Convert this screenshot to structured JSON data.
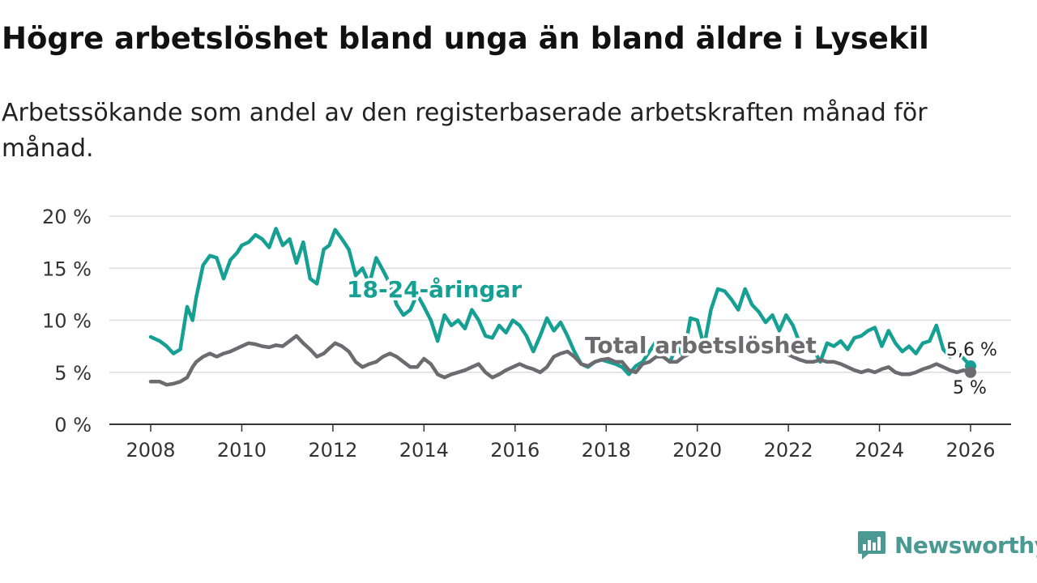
{
  "title": "Högre arbetslöshet bland unga än bland äldre i Lysekil",
  "subtitle": "Arbetssökande som andel av den registerbaserade arbetskraften månad för månad.",
  "brand": {
    "name": "Newsworthy"
  },
  "colors": {
    "youth": "#16a094",
    "total": "#6c6b70",
    "grid": "#dddddd",
    "axis": "#333333",
    "brand": "#4a9a93"
  },
  "chart_data": {
    "type": "line",
    "xlim": [
      2008,
      2026
    ],
    "ylim": [
      0,
      20
    ],
    "yticks": [
      0,
      5,
      10,
      15,
      20
    ],
    "ytick_labels": [
      "0 %",
      "5 %",
      "10 %",
      "15 %",
      "20 %"
    ],
    "xticks": [
      2008,
      2010,
      2012,
      2014,
      2016,
      2018,
      2020,
      2022,
      2024,
      2026
    ],
    "xtick_labels": [
      "2008",
      "2010",
      "2012",
      "2014",
      "2016",
      "2018",
      "2020",
      "2022",
      "2024",
      "2026"
    ],
    "series": [
      {
        "name": "18-24-åringar",
        "label": "18-24-åringar",
        "end_label": "5,6 %",
        "x": [
          2008.0,
          2008.2,
          2008.35,
          2008.5,
          2008.65,
          2008.8,
          2008.92,
          2009.0,
          2009.15,
          2009.3,
          2009.45,
          2009.6,
          2009.75,
          2009.9,
          2010.0,
          2010.15,
          2010.3,
          2010.45,
          2010.6,
          2010.75,
          2010.9,
          2011.05,
          2011.2,
          2011.35,
          2011.5,
          2011.65,
          2011.8,
          2011.92,
          2012.05,
          2012.2,
          2012.35,
          2012.5,
          2012.65,
          2012.8,
          2012.95,
          2013.1,
          2013.25,
          2013.4,
          2013.55,
          2013.7,
          2013.85,
          2014.0,
          2014.15,
          2014.3,
          2014.45,
          2014.6,
          2014.75,
          2014.9,
          2015.05,
          2015.2,
          2015.35,
          2015.5,
          2015.65,
          2015.8,
          2015.95,
          2016.1,
          2016.25,
          2016.4,
          2016.55,
          2016.7,
          2016.85,
          2017.0,
          2017.15,
          2017.3,
          2017.45,
          2017.6,
          2017.75,
          2017.9,
          2018.05,
          2018.2,
          2018.35,
          2018.5,
          2018.65,
          2018.8,
          2018.95,
          2019.1,
          2019.25,
          2019.4,
          2019.55,
          2019.7,
          2019.85,
          2020.0,
          2020.15,
          2020.3,
          2020.45,
          2020.6,
          2020.75,
          2020.9,
          2021.05,
          2021.2,
          2021.35,
          2021.5,
          2021.65,
          2021.8,
          2021.95,
          2022.1,
          2022.25,
          2022.4,
          2022.55,
          2022.7,
          2022.85,
          2023.0,
          2023.15,
          2023.3,
          2023.45,
          2023.6,
          2023.75,
          2023.9,
          2024.05,
          2024.2,
          2024.35,
          2024.5,
          2024.65,
          2024.8,
          2024.95,
          2025.1,
          2025.25,
          2025.4,
          2025.55,
          2025.7,
          2025.85,
          2026.0
        ],
        "values": [
          8.4,
          8.0,
          7.5,
          6.8,
          7.2,
          11.3,
          10.0,
          12.2,
          15.3,
          16.2,
          16.0,
          14.0,
          15.8,
          16.5,
          17.2,
          17.5,
          18.2,
          17.8,
          17.0,
          18.8,
          17.2,
          17.8,
          15.5,
          17.5,
          14.0,
          13.5,
          16.8,
          17.2,
          18.7,
          17.8,
          16.8,
          14.3,
          15.0,
          13.5,
          16.0,
          14.8,
          13.5,
          11.5,
          10.5,
          11.0,
          12.5,
          11.3,
          10.0,
          8.0,
          10.5,
          9.5,
          10.0,
          9.2,
          11.0,
          10.0,
          8.5,
          8.3,
          9.5,
          8.8,
          10.0,
          9.5,
          8.5,
          7.0,
          8.5,
          10.2,
          9.0,
          9.8,
          8.5,
          7.0,
          5.8,
          5.5,
          6.0,
          6.2,
          6.0,
          5.8,
          5.5,
          4.8,
          5.6,
          6.0,
          7.0,
          8.0,
          6.5,
          6.0,
          7.5,
          6.5,
          10.2,
          10.0,
          7.5,
          11.0,
          13.0,
          12.8,
          12.0,
          11.0,
          13.0,
          11.5,
          10.8,
          9.8,
          10.5,
          9.0,
          10.5,
          9.5,
          7.8,
          7.0,
          7.2,
          6.0,
          7.8,
          7.5,
          8.0,
          7.2,
          8.3,
          8.5,
          9.0,
          9.3,
          7.5,
          9.0,
          7.8,
          7.0,
          7.5,
          6.8,
          7.8,
          8.0,
          9.5,
          7.2,
          6.5,
          7.0,
          6.3,
          5.6
        ]
      },
      {
        "name": "Total arbetslöshet",
        "label": "Total arbetslöshet",
        "end_label": "5 %",
        "x": [
          2008.0,
          2008.2,
          2008.35,
          2008.5,
          2008.65,
          2008.8,
          2008.92,
          2009.0,
          2009.15,
          2009.3,
          2009.45,
          2009.6,
          2009.75,
          2009.9,
          2010.0,
          2010.15,
          2010.3,
          2010.45,
          2010.6,
          2010.75,
          2010.9,
          2011.05,
          2011.2,
          2011.35,
          2011.5,
          2011.65,
          2011.8,
          2011.92,
          2012.05,
          2012.2,
          2012.35,
          2012.5,
          2012.65,
          2012.8,
          2012.95,
          2013.1,
          2013.25,
          2013.4,
          2013.55,
          2013.7,
          2013.85,
          2014.0,
          2014.15,
          2014.3,
          2014.45,
          2014.6,
          2014.75,
          2014.9,
          2015.05,
          2015.2,
          2015.35,
          2015.5,
          2015.65,
          2015.8,
          2015.95,
          2016.1,
          2016.25,
          2016.4,
          2016.55,
          2016.7,
          2016.85,
          2017.0,
          2017.15,
          2017.3,
          2017.45,
          2017.6,
          2017.75,
          2017.9,
          2018.05,
          2018.2,
          2018.35,
          2018.5,
          2018.65,
          2018.8,
          2018.95,
          2019.1,
          2019.25,
          2019.4,
          2019.55,
          2019.7,
          2019.85,
          2020.0,
          2020.15,
          2020.3,
          2020.45,
          2020.6,
          2020.75,
          2020.9,
          2021.05,
          2021.2,
          2021.35,
          2021.5,
          2021.65,
          2021.8,
          2021.95,
          2022.1,
          2022.25,
          2022.4,
          2022.55,
          2022.7,
          2022.85,
          2023.0,
          2023.15,
          2023.3,
          2023.45,
          2023.6,
          2023.75,
          2023.9,
          2024.05,
          2024.2,
          2024.35,
          2024.5,
          2024.65,
          2024.8,
          2024.95,
          2025.1,
          2025.25,
          2025.4,
          2025.55,
          2025.7,
          2025.85,
          2026.0
        ],
        "values": [
          4.1,
          4.1,
          3.8,
          3.9,
          4.1,
          4.5,
          5.5,
          6.0,
          6.5,
          6.8,
          6.5,
          6.8,
          7.0,
          7.3,
          7.5,
          7.8,
          7.7,
          7.5,
          7.4,
          7.6,
          7.5,
          8.0,
          8.5,
          7.8,
          7.2,
          6.5,
          6.8,
          7.3,
          7.8,
          7.5,
          7.0,
          6.0,
          5.5,
          5.8,
          6.0,
          6.5,
          6.8,
          6.5,
          6.0,
          5.5,
          5.5,
          6.3,
          5.8,
          4.8,
          4.5,
          4.8,
          5.0,
          5.2,
          5.5,
          5.8,
          5.0,
          4.5,
          4.8,
          5.2,
          5.5,
          5.8,
          5.5,
          5.3,
          5.0,
          5.5,
          6.5,
          6.8,
          7.0,
          6.5,
          5.8,
          5.6,
          6.0,
          6.2,
          6.3,
          6.0,
          6.0,
          5.2,
          5.0,
          5.8,
          6.0,
          6.5,
          6.5,
          6.0,
          6.0,
          6.5,
          6.8,
          7.0,
          7.0,
          7.2,
          7.5,
          7.8,
          8.0,
          7.8,
          7.5,
          7.5,
          7.3,
          7.0,
          7.0,
          7.2,
          6.8,
          6.5,
          6.2,
          6.0,
          6.0,
          6.2,
          6.0,
          6.0,
          5.8,
          5.5,
          5.2,
          5.0,
          5.2,
          5.0,
          5.3,
          5.5,
          5.0,
          4.8,
          4.8,
          5.0,
          5.3,
          5.5,
          5.8,
          5.5,
          5.2,
          5.0,
          5.2,
          5.0
        ]
      }
    ]
  }
}
